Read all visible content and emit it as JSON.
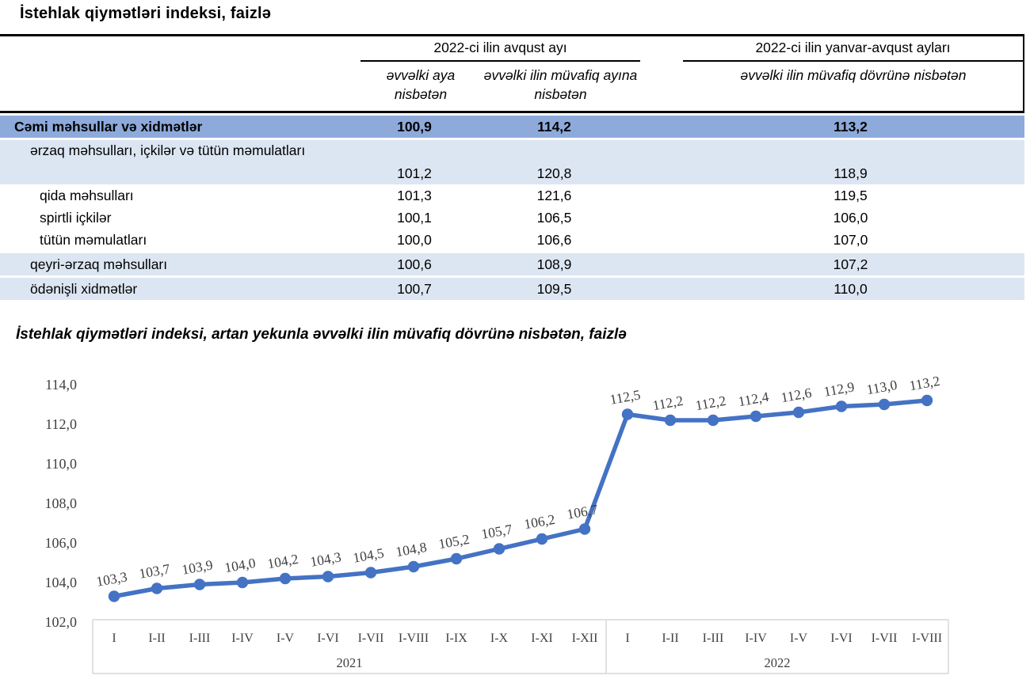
{
  "table": {
    "title": "İstehlak qiymətləri indeksi, faizlə",
    "col_groups": [
      {
        "label": "2022-ci ilin avqust ayı",
        "sub_columns": [
          "əvvəlki aya nisbətən",
          "əvvəlki ilin müvafiq ayına nisbətən"
        ]
      },
      {
        "label": "2022-ci ilin yanvar-avqust ayları",
        "sub_columns": [
          "əvvəlki ilin müvafiq dövrünə nisbətən"
        ]
      }
    ],
    "rows": [
      {
        "label": "Cəmi məhsullar və xidmətlər",
        "values": [
          "100,9",
          "114,2",
          "113,2"
        ],
        "style": "total",
        "indent": 0
      },
      {
        "label": "ərzaq məhsulları, içkilər və tütün məmulatları",
        "values": [
          "101,2",
          "120,8",
          "118,9"
        ],
        "style": "band tall",
        "indent": 1
      },
      {
        "label": "qida məhsulları",
        "values": [
          "101,3",
          "121,6",
          "119,5"
        ],
        "style": "plain",
        "indent": 2
      },
      {
        "label": "spirtli içkilər",
        "values": [
          "100,1",
          "106,5",
          "106,0"
        ],
        "style": "plain",
        "indent": 2
      },
      {
        "label": "tütün məmulatları",
        "values": [
          "100,0",
          "106,6",
          "107,0"
        ],
        "style": "plain",
        "indent": 2
      },
      {
        "label": "qeyri-ərzaq məhsulları",
        "values": [
          "100,6",
          "108,9",
          "107,2"
        ],
        "style": "band",
        "indent": 1
      },
      {
        "label": "ödənişli xidmətlər",
        "values": [
          "100,7",
          "109,5",
          "110,0"
        ],
        "style": "band",
        "indent": 1
      }
    ],
    "colors": {
      "total_row_bg": "#8EAADB",
      "band_row_bg": "#DCE6F2"
    }
  },
  "chart_data": {
    "type": "line",
    "title": "İstehlak qiymətləri indeksi, artan yekunla əvvəlki ilin müvafiq dövrünə nisbətən, faizlə",
    "groups": [
      {
        "year": "2021",
        "categories": [
          "I",
          "I-II",
          "I-III",
          "I-IV",
          "I-V",
          "I-VI",
          "I-VII",
          "I-VIII",
          "I-IX",
          "I-X",
          "I-XI",
          "I-XII"
        ],
        "values": [
          103.3,
          103.7,
          103.9,
          104.0,
          104.2,
          104.3,
          104.5,
          104.8,
          105.2,
          105.7,
          106.2,
          106.7
        ]
      },
      {
        "year": "2022",
        "categories": [
          "I",
          "I-II",
          "I-III",
          "I-IV",
          "I-V",
          "I-VI",
          "I-VII",
          "I-VIII"
        ],
        "values": [
          112.5,
          112.2,
          112.2,
          112.4,
          112.6,
          112.9,
          113.0,
          113.2
        ]
      }
    ],
    "ylim": [
      102.0,
      114.0
    ],
    "ytick_step": 2.0,
    "ytick_labels": [
      "114,0",
      "112,0",
      "110,0",
      "108,0",
      "106,0",
      "104,0",
      "102,0"
    ],
    "grid": false,
    "legend": "none",
    "data_labels": true,
    "line_color": "#4472C4",
    "axis_text_color": "#3f3f3f",
    "axis_box_border_color": "#d6d6d6"
  }
}
